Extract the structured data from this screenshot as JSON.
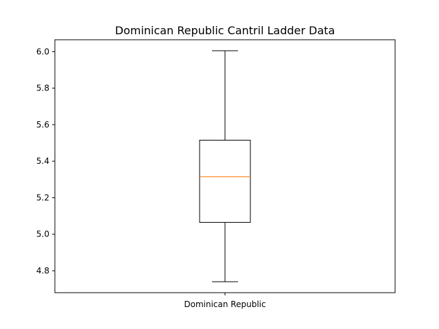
{
  "chart_data": {
    "type": "box",
    "title": "Dominican Republic Cantril Ladder Data",
    "xlabel": "",
    "ylabel": "",
    "categories": [
      "Dominican Republic"
    ],
    "boxes": [
      {
        "label": "Dominican Republic",
        "whisker_low": 4.74,
        "q1": 5.065,
        "median": 5.315,
        "q3": 5.515,
        "whisker_high": 6.005
      }
    ],
    "ylim": [
      4.68,
      6.065
    ],
    "yticks": [
      4.8,
      5.0,
      5.2,
      5.4,
      5.6,
      5.8,
      6.0
    ],
    "ytick_labels": [
      "4.8",
      "5.0",
      "5.2",
      "5.4",
      "5.6",
      "5.8",
      "6.0"
    ],
    "grid": false,
    "colors": {
      "box": "#000000",
      "median": "#ff7f0e"
    }
  }
}
